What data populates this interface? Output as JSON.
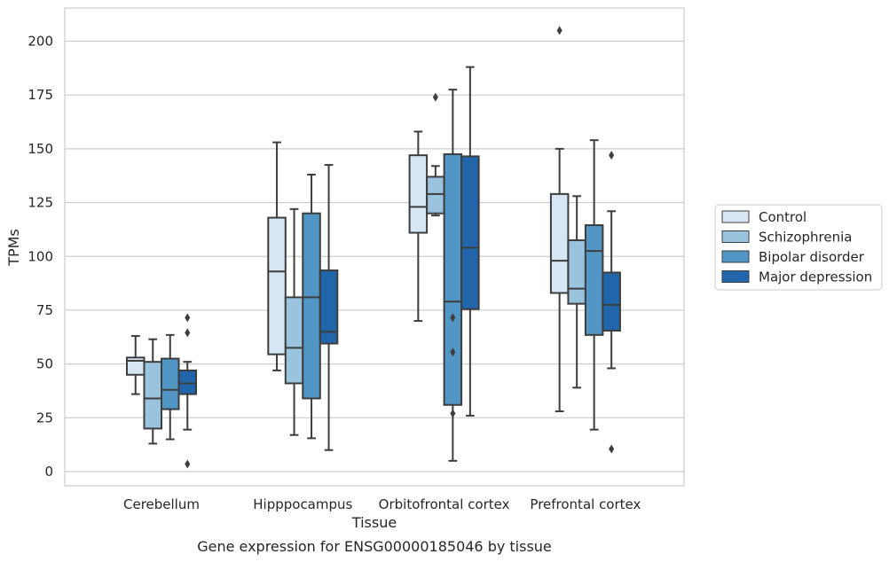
{
  "chart_data": {
    "type": "box",
    "xlabel": "Tissue",
    "ylabel": "TPMs",
    "caption": "Gene expression for ENSG00000185046 by tissue",
    "ylim": [
      -6,
      216
    ],
    "yticks": [
      0,
      25,
      50,
      75,
      100,
      125,
      150,
      175,
      200
    ],
    "grid": "horizontal",
    "legend_position": "right",
    "categories": [
      "Cerebellum",
      "Hipppocampus",
      "Orbitofrontal cortex",
      "Prefrontal cortex"
    ],
    "series": [
      {
        "name": "Control",
        "color": "#d6e6f4",
        "boxes": [
          {
            "whislo": 36,
            "q1": 45,
            "med": 51.5,
            "q3": 53,
            "whishi": 63,
            "fliers": []
          },
          {
            "whislo": 47,
            "q1": 54.5,
            "med": 93,
            "q3": 118,
            "whishi": 153,
            "fliers": []
          },
          {
            "whislo": 70,
            "q1": 111,
            "med": 123,
            "q3": 147,
            "whishi": 158,
            "fliers": []
          },
          {
            "whislo": 28,
            "q1": 83,
            "med": 98,
            "q3": 129,
            "whishi": 150,
            "fliers": [
              205
            ]
          }
        ]
      },
      {
        "name": "Schizophrenia",
        "color": "#9ac3dd",
        "boxes": [
          {
            "whislo": 13,
            "q1": 20,
            "med": 34,
            "q3": 51,
            "whishi": 61.5,
            "fliers": []
          },
          {
            "whislo": 17,
            "q1": 41,
            "med": 57.5,
            "q3": 81,
            "whishi": 122,
            "fliers": []
          },
          {
            "whislo": 119,
            "q1": 120,
            "med": 129,
            "q3": 137,
            "whishi": 142,
            "fliers": [
              174
            ]
          },
          {
            "whislo": 39,
            "q1": 78,
            "med": 85,
            "q3": 107.5,
            "whishi": 128,
            "fliers": []
          }
        ]
      },
      {
        "name": "Bipolar disorder",
        "color": "#5196c4",
        "boxes": [
          {
            "whislo": 15,
            "q1": 29,
            "med": 38,
            "q3": 52.5,
            "whishi": 63.5,
            "fliers": []
          },
          {
            "whislo": 15.5,
            "q1": 34,
            "med": 81,
            "q3": 120,
            "whishi": 138,
            "fliers": []
          },
          {
            "whislo": 5,
            "q1": 31,
            "med": 79,
            "q3": 147.5,
            "whishi": 177.5,
            "fliers": [
              71.5,
              55.5,
              27
            ]
          },
          {
            "whislo": 19.5,
            "q1": 63.5,
            "med": 102.5,
            "q3": 114.5,
            "whishi": 154,
            "fliers": []
          }
        ]
      },
      {
        "name": "Major depression",
        "color": "#2166ab",
        "boxes": [
          {
            "whislo": 19.5,
            "q1": 36,
            "med": 41,
            "q3": 47,
            "whishi": 51,
            "fliers": [
              71.5,
              64.5,
              3.5
            ]
          },
          {
            "whislo": 10,
            "q1": 59.5,
            "med": 65,
            "q3": 93.5,
            "whishi": 142.5,
            "fliers": []
          },
          {
            "whislo": 26,
            "q1": 75.5,
            "med": 104,
            "q3": 146.5,
            "whishi": 188,
            "fliers": []
          },
          {
            "whislo": 48,
            "q1": 65.5,
            "med": 77.5,
            "q3": 92.5,
            "whishi": 121,
            "fliers": [
              147,
              10.5
            ]
          }
        ]
      }
    ]
  }
}
